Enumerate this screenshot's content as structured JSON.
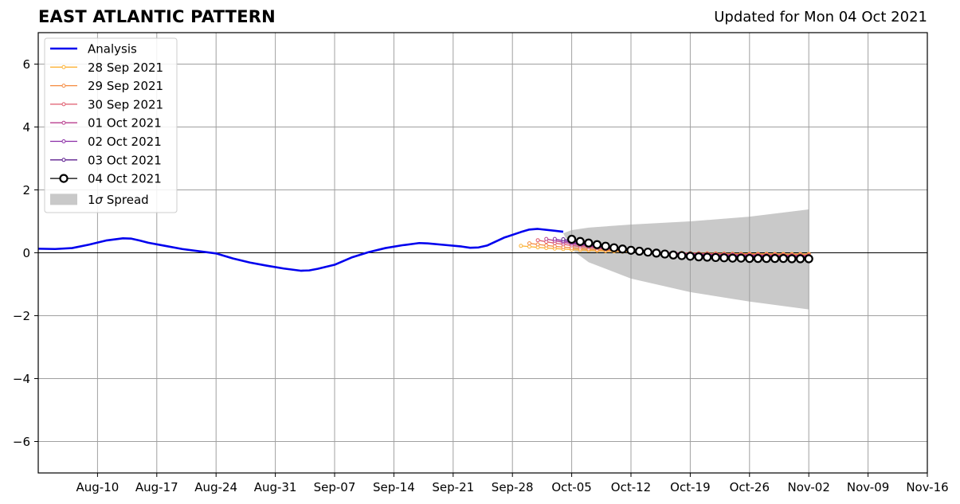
{
  "title": "EAST ATLANTIC PATTERN",
  "subtitle": "Updated for Mon 04 Oct 2021",
  "chart_data": {
    "type": "line",
    "xlim": [
      "2021-08-03",
      "2021-11-16"
    ],
    "ylim": [
      -7,
      7
    ],
    "x_ticks": [
      {
        "date": "2021-08-10",
        "label": "Aug-10"
      },
      {
        "date": "2021-08-17",
        "label": "Aug-17"
      },
      {
        "date": "2021-08-24",
        "label": "Aug-24"
      },
      {
        "date": "2021-08-31",
        "label": "Aug-31"
      },
      {
        "date": "2021-09-07",
        "label": "Sep-07"
      },
      {
        "date": "2021-09-14",
        "label": "Sep-14"
      },
      {
        "date": "2021-09-21",
        "label": "Sep-21"
      },
      {
        "date": "2021-09-28",
        "label": "Sep-28"
      },
      {
        "date": "2021-10-05",
        "label": "Oct-05"
      },
      {
        "date": "2021-10-12",
        "label": "Oct-12"
      },
      {
        "date": "2021-10-19",
        "label": "Oct-19"
      },
      {
        "date": "2021-10-26",
        "label": "Oct-26"
      },
      {
        "date": "2021-11-02",
        "label": "Nov-02"
      },
      {
        "date": "2021-11-09",
        "label": "Nov-09"
      },
      {
        "date": "2021-11-16",
        "label": "Nov-16"
      }
    ],
    "y_ticks": [
      {
        "value": 6,
        "label": "6"
      },
      {
        "value": 4,
        "label": "4"
      },
      {
        "value": 2,
        "label": "2"
      },
      {
        "value": 0,
        "label": "0"
      },
      {
        "value": -2,
        "label": "−2"
      },
      {
        "value": -4,
        "label": "−4"
      },
      {
        "value": -6,
        "label": "−6"
      }
    ],
    "grid": true,
    "legend_position": "top-left",
    "analysis": {
      "name": "Analysis",
      "color": "#0000ee",
      "x": [
        "2021-08-03",
        "2021-08-05",
        "2021-08-07",
        "2021-08-09",
        "2021-08-11",
        "2021-08-13",
        "2021-08-14",
        "2021-08-15",
        "2021-08-16",
        "2021-08-18",
        "2021-08-20",
        "2021-08-22",
        "2021-08-24",
        "2021-08-26",
        "2021-08-28",
        "2021-08-30",
        "2021-09-01",
        "2021-09-03",
        "2021-09-04",
        "2021-09-05",
        "2021-09-07",
        "2021-09-09",
        "2021-09-11",
        "2021-09-13",
        "2021-09-15",
        "2021-09-17",
        "2021-09-18",
        "2021-09-20",
        "2021-09-22",
        "2021-09-23",
        "2021-09-24",
        "2021-09-25",
        "2021-09-27",
        "2021-09-29",
        "2021-09-30",
        "2021-10-01",
        "2021-10-03",
        "2021-10-04"
      ],
      "values": [
        0.13,
        0.12,
        0.15,
        0.26,
        0.39,
        0.46,
        0.45,
        0.39,
        0.32,
        0.22,
        0.12,
        0.05,
        -0.02,
        -0.18,
        -0.31,
        -0.41,
        -0.5,
        -0.57,
        -0.56,
        -0.51,
        -0.38,
        -0.15,
        0.02,
        0.15,
        0.24,
        0.31,
        0.3,
        0.25,
        0.2,
        0.16,
        0.17,
        0.23,
        0.48,
        0.66,
        0.74,
        0.76,
        0.7,
        0.67
      ]
    },
    "forecasts": [
      {
        "name": "28 Sep 2021",
        "color": "#fcb337",
        "start": "2021-09-29",
        "start_value": 0.22,
        "end_value": -0.05
      },
      {
        "name": "29 Sep 2021",
        "color": "#f58a3f",
        "start": "2021-09-30",
        "start_value": 0.3,
        "end_value": -0.07
      },
      {
        "name": "30 Sep 2021",
        "color": "#df5a6c",
        "start": "2021-10-01",
        "start_value": 0.4,
        "end_value": -0.1
      },
      {
        "name": "01 Oct 2021",
        "color": "#b83e8e",
        "start": "2021-10-02",
        "start_value": 0.44,
        "end_value": -0.12
      },
      {
        "name": "02 Oct 2021",
        "color": "#8a2da6",
        "start": "2021-10-03",
        "start_value": 0.44,
        "end_value": -0.15
      },
      {
        "name": "03 Oct 2021",
        "color": "#5d1e8f",
        "start": "2021-10-04",
        "start_value": 0.43,
        "end_value": -0.17
      }
    ],
    "forecast_horizon_end": "2021-11-02",
    "latest": {
      "name": "04 Oct 2021",
      "color": "#000000",
      "x_start": "2021-10-05",
      "values": [
        0.43,
        0.36,
        0.31,
        0.26,
        0.21,
        0.16,
        0.12,
        0.08,
        0.05,
        0.02,
        -0.01,
        -0.04,
        -0.07,
        -0.09,
        -0.11,
        -0.13,
        -0.14,
        -0.15,
        -0.16,
        -0.17,
        -0.17,
        -0.18,
        -0.18,
        -0.18,
        -0.18,
        -0.18,
        -0.19,
        -0.19,
        -0.19
      ]
    },
    "spread": {
      "name": "1σ Spread",
      "legend_label_prefix": "1",
      "legend_label_symbol": "σ",
      "legend_label_suffix": " Spread",
      "color": "#c9c9c9",
      "x": [
        "2021-10-04",
        "2021-10-05",
        "2021-10-07",
        "2021-10-12",
        "2021-10-19",
        "2021-10-26",
        "2021-11-02"
      ],
      "upper": [
        0.62,
        0.72,
        0.8,
        0.9,
        1.0,
        1.15,
        1.38
      ],
      "lower": [
        0.62,
        0.1,
        -0.3,
        -0.82,
        -1.25,
        -1.55,
        -1.8
      ]
    }
  }
}
